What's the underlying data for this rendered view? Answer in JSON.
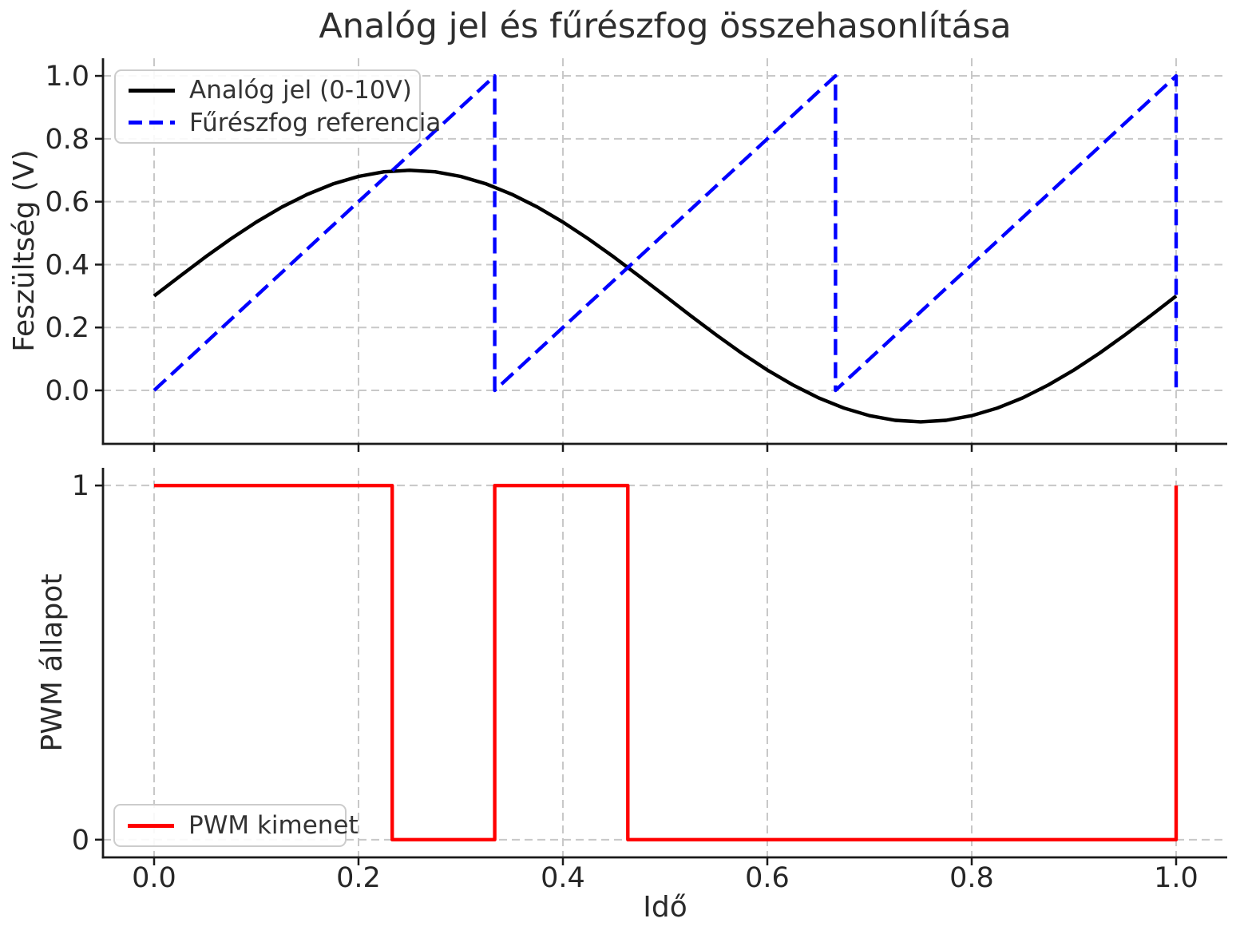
{
  "figure": {
    "title": "Analóg jel és fűrészfog összehasonlítása",
    "background_color": "#ffffff",
    "text_color": "#262626",
    "spine_color": "#1a1a1a",
    "grid_color": "#c8c8c8"
  },
  "chart_data": [
    {
      "type": "line",
      "subplot": "top",
      "ylabel": "Feszültség (V)",
      "xlabel": "",
      "xlim": [
        -0.05,
        1.05
      ],
      "ylim": [
        -0.17,
        1.056
      ],
      "grid": true,
      "xticks": {
        "values": [
          0,
          0.2,
          0.4,
          0.6,
          0.8,
          1.0
        ],
        "labels": [
          "",
          "",
          "",
          "",
          "",
          ""
        ]
      },
      "yticks": {
        "values": [
          0,
          0.2,
          0.4,
          0.6,
          0.8,
          1.0
        ],
        "labels": [
          "0.0",
          "0.2",
          "0.4",
          "0.6",
          "0.8",
          "1.0"
        ]
      },
      "legend": {
        "position": "upper-left",
        "entries": [
          {
            "label": "Analóg jel (0-10V)",
            "color": "#000000",
            "style": "solid"
          },
          {
            "label": "Fűrészfog referencia",
            "color": "#0000ff",
            "style": "dashed"
          }
        ]
      },
      "series": [
        {
          "name": "Analóg jel (0-10V)",
          "color": "#000000",
          "style": "solid",
          "formula": "y = 0.3 + 0.4*sin(2*pi*t)",
          "points": [
            [
              0,
              0.3
            ],
            [
              0.025,
              0.3626
            ],
            [
              0.05,
              0.4236
            ],
            [
              0.075,
              0.4816
            ],
            [
              0.1,
              0.5351
            ],
            [
              0.125,
              0.5828
            ],
            [
              0.15,
              0.6236
            ],
            [
              0.175,
              0.6564
            ],
            [
              0.2,
              0.6804
            ],
            [
              0.225,
              0.6951
            ],
            [
              0.25,
              0.7
            ],
            [
              0.275,
              0.6951
            ],
            [
              0.3,
              0.6804
            ],
            [
              0.325,
              0.6564
            ],
            [
              0.35,
              0.6236
            ],
            [
              0.375,
              0.5828
            ],
            [
              0.4,
              0.5351
            ],
            [
              0.425,
              0.4816
            ],
            [
              0.45,
              0.4236
            ],
            [
              0.475,
              0.3626
            ],
            [
              0.5,
              0.3
            ],
            [
              0.525,
              0.2374
            ],
            [
              0.55,
              0.1764
            ],
            [
              0.575,
              0.1184
            ],
            [
              0.6,
              0.0649
            ],
            [
              0.625,
              0.0172
            ],
            [
              0.65,
              -0.0236
            ],
            [
              0.675,
              -0.0564
            ],
            [
              0.7,
              -0.0804
            ],
            [
              0.725,
              -0.0951
            ],
            [
              0.75,
              -0.1
            ],
            [
              0.775,
              -0.0951
            ],
            [
              0.8,
              -0.0804
            ],
            [
              0.825,
              -0.0564
            ],
            [
              0.85,
              -0.0236
            ],
            [
              0.875,
              0.0172
            ],
            [
              0.9,
              0.0649
            ],
            [
              0.925,
              0.1184
            ],
            [
              0.95,
              0.1764
            ],
            [
              0.975,
              0.2374
            ],
            [
              1,
              0.3
            ]
          ]
        },
        {
          "name": "Fűrészfog referencia",
          "color": "#0000ff",
          "style": "dashed",
          "formula": "sawtooth, 3 periods, 0..1",
          "points": [
            [
              0,
              0
            ],
            [
              0.3333,
              1
            ],
            [
              0.3333,
              0
            ],
            [
              0.6667,
              1
            ],
            [
              0.6667,
              0
            ],
            [
              1,
              1
            ],
            [
              1,
              0
            ]
          ]
        }
      ]
    },
    {
      "type": "line",
      "subplot": "bottom",
      "ylabel": "PWM állapot",
      "xlabel": "Idő",
      "xlim": [
        -0.05,
        1.05
      ],
      "ylim": [
        -0.05,
        1.05
      ],
      "grid": true,
      "xticks": {
        "values": [
          0,
          0.2,
          0.4,
          0.6,
          0.8,
          1.0
        ],
        "labels": [
          "0.0",
          "0.2",
          "0.4",
          "0.6",
          "0.8",
          "1.0"
        ]
      },
      "yticks": {
        "values": [
          0,
          1
        ],
        "labels": [
          "0",
          "1"
        ]
      },
      "legend": {
        "position": "lower-left",
        "entries": [
          {
            "label": "PWM kimenet",
            "color": "#ff0000",
            "style": "solid"
          }
        ]
      },
      "series": [
        {
          "name": "PWM kimenet",
          "color": "#ff0000",
          "style": "solid",
          "points": [
            [
              0,
              1
            ],
            [
              0.233,
              1
            ],
            [
              0.233,
              0
            ],
            [
              0.3333,
              0
            ],
            [
              0.3333,
              1
            ],
            [
              0.4635,
              1
            ],
            [
              0.4635,
              0
            ],
            [
              1,
              0
            ],
            [
              1,
              1
            ]
          ]
        }
      ]
    }
  ]
}
